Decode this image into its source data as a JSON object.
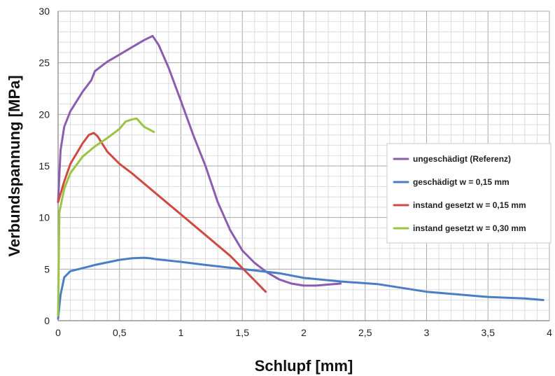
{
  "chart_data": {
    "type": "line",
    "title": "",
    "xlabel": "Schlupf [mm]",
    "ylabel": "Verbundspannung [MPa]",
    "xlim": [
      0,
      4
    ],
    "ylim": [
      0,
      30
    ],
    "x_ticks": [
      "0",
      "0,5",
      "1",
      "1,5",
      "2",
      "2,5",
      "3",
      "3,5",
      "4"
    ],
    "y_ticks": [
      "0",
      "5",
      "10",
      "15",
      "20",
      "25",
      "30"
    ],
    "grid": true,
    "legend_position": "right",
    "series": [
      {
        "name": "ungeschädigt (Referenz)",
        "color": "#8b5db0",
        "points": [
          [
            0,
            11.5
          ],
          [
            0.02,
            16.5
          ],
          [
            0.05,
            18.8
          ],
          [
            0.1,
            20.3
          ],
          [
            0.2,
            22.2
          ],
          [
            0.27,
            23.3
          ],
          [
            0.3,
            24.2
          ],
          [
            0.4,
            25.1
          ],
          [
            0.5,
            25.8
          ],
          [
            0.6,
            26.5
          ],
          [
            0.7,
            27.2
          ],
          [
            0.77,
            27.6
          ],
          [
            0.82,
            26.7
          ],
          [
            0.9,
            24.5
          ],
          [
            1.0,
            21.3
          ],
          [
            1.1,
            18.0
          ],
          [
            1.2,
            15.0
          ],
          [
            1.3,
            11.5
          ],
          [
            1.4,
            8.8
          ],
          [
            1.5,
            6.8
          ],
          [
            1.6,
            5.6
          ],
          [
            1.7,
            4.7
          ],
          [
            1.8,
            4.0
          ],
          [
            1.9,
            3.6
          ],
          [
            2.0,
            3.4
          ],
          [
            2.1,
            3.4
          ],
          [
            2.2,
            3.5
          ],
          [
            2.3,
            3.6
          ]
        ]
      },
      {
        "name": "geschädigt w = 0,15 mm",
        "color": "#4a7ec4",
        "points": [
          [
            0,
            0.2
          ],
          [
            0.02,
            2.5
          ],
          [
            0.05,
            4.2
          ],
          [
            0.1,
            4.8
          ],
          [
            0.2,
            5.1
          ],
          [
            0.3,
            5.4
          ],
          [
            0.5,
            5.9
          ],
          [
            0.6,
            6.05
          ],
          [
            0.7,
            6.1
          ],
          [
            0.75,
            6.05
          ],
          [
            0.8,
            5.95
          ],
          [
            1.0,
            5.7
          ],
          [
            1.2,
            5.4
          ],
          [
            1.5,
            5.0
          ],
          [
            1.8,
            4.6
          ],
          [
            2.0,
            4.15
          ],
          [
            2.3,
            3.8
          ],
          [
            2.6,
            3.55
          ],
          [
            3.0,
            2.8
          ],
          [
            3.5,
            2.3
          ],
          [
            3.8,
            2.15
          ],
          [
            3.95,
            2.0
          ]
        ]
      },
      {
        "name": "instand gesetzt w = 0,15 mm",
        "color": "#d04a44",
        "points": [
          [
            0,
            11.5
          ],
          [
            0.05,
            13.5
          ],
          [
            0.1,
            15.2
          ],
          [
            0.2,
            17.2
          ],
          [
            0.25,
            18.0
          ],
          [
            0.29,
            18.2
          ],
          [
            0.32,
            17.9
          ],
          [
            0.4,
            16.4
          ],
          [
            0.5,
            15.2
          ],
          [
            0.6,
            14.3
          ],
          [
            0.8,
            12.3
          ],
          [
            1.0,
            10.3
          ],
          [
            1.2,
            8.3
          ],
          [
            1.4,
            6.3
          ],
          [
            1.6,
            3.9
          ],
          [
            1.69,
            2.8
          ]
        ]
      },
      {
        "name": "instand gesetzt w = 0,30 mm",
        "color": "#9bc445",
        "points": [
          [
            0,
            0.5
          ],
          [
            0.01,
            10.5
          ],
          [
            0.05,
            12.8
          ],
          [
            0.1,
            14.3
          ],
          [
            0.2,
            15.9
          ],
          [
            0.3,
            16.9
          ],
          [
            0.4,
            17.7
          ],
          [
            0.5,
            18.6
          ],
          [
            0.55,
            19.3
          ],
          [
            0.6,
            19.5
          ],
          [
            0.64,
            19.6
          ],
          [
            0.7,
            18.8
          ],
          [
            0.78,
            18.3
          ]
        ]
      }
    ]
  }
}
